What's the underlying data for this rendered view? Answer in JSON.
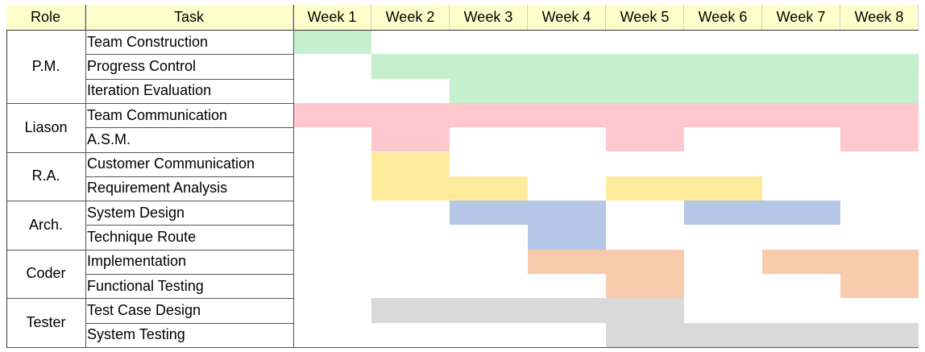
{
  "headers": {
    "role": "Role",
    "task": "Task"
  },
  "colors": {
    "header_bg": "#ffffcc",
    "P.M.": "#c6efce",
    "Liason": "#ffc7ce",
    "R.A.": "#ffeb9c",
    "Arch.": "#b4c7e7",
    "Coder": "#f8cbad",
    "Tester": "#d9d9d9"
  },
  "chart_data": {
    "type": "table",
    "weeks": [
      "Week 1",
      "Week 2",
      "Week 3",
      "Week 4",
      "Week 5",
      "Week 6",
      "Week 7",
      "Week 8"
    ],
    "groups": [
      {
        "role": "P.M.",
        "tasks": [
          {
            "name": "Team Construction",
            "weeks": [
              1
            ]
          },
          {
            "name": "Progress Control",
            "weeks": [
              2,
              3,
              4,
              5,
              6,
              7,
              8
            ]
          },
          {
            "name": "Iteration Evaluation",
            "weeks": [
              3,
              4,
              5,
              6,
              7,
              8
            ]
          }
        ]
      },
      {
        "role": "Liason",
        "tasks": [
          {
            "name": "Team Communication",
            "weeks": [
              1,
              2,
              3,
              4,
              5,
              6,
              7,
              8
            ]
          },
          {
            "name": "A.S.M.",
            "weeks": [
              2,
              5,
              8
            ]
          }
        ]
      },
      {
        "role": "R.A.",
        "tasks": [
          {
            "name": "Customer Communication",
            "weeks": [
              2
            ]
          },
          {
            "name": "Requirement Analysis",
            "weeks": [
              2,
              3,
              5,
              6
            ]
          }
        ]
      },
      {
        "role": "Arch.",
        "tasks": [
          {
            "name": "System Design",
            "weeks": [
              3,
              4,
              6,
              7
            ]
          },
          {
            "name": "Technique Route",
            "weeks": [
              4
            ]
          }
        ]
      },
      {
        "role": "Coder",
        "tasks": [
          {
            "name": "Implementation",
            "weeks": [
              4,
              5,
              7,
              8
            ]
          },
          {
            "name": "Functional Testing",
            "weeks": [
              5,
              8
            ]
          }
        ]
      },
      {
        "role": "Tester",
        "tasks": [
          {
            "name": "Test Case Design",
            "weeks": [
              2,
              3,
              4,
              5
            ]
          },
          {
            "name": "System Testing",
            "weeks": [
              5,
              6,
              7,
              8
            ]
          }
        ]
      }
    ]
  }
}
